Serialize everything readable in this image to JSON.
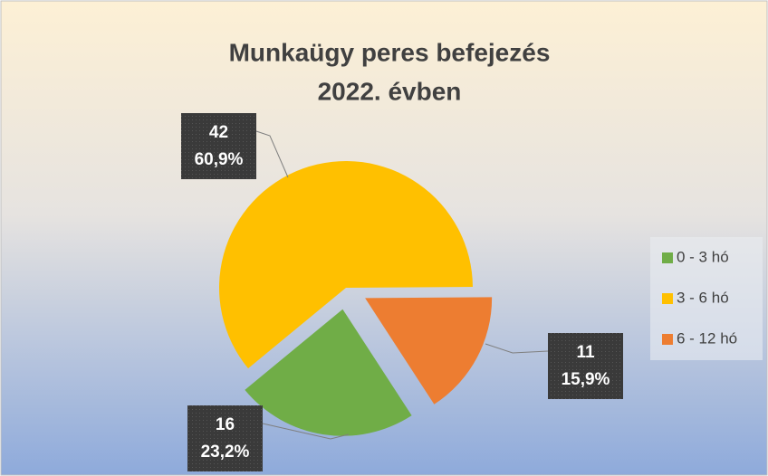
{
  "chart_data": {
    "type": "pie",
    "title": [
      "Munkaügy peres befejezés",
      "2022. évben"
    ],
    "categories": [
      "0 - 3 hó",
      "3 - 6 hó",
      "6 - 12 hó"
    ],
    "values": [
      16,
      42,
      11
    ],
    "percent_labels": [
      "23,2%",
      "60,9%",
      "15,9%"
    ],
    "colors": [
      "#70ad47",
      "#ffc000",
      "#ed7d31"
    ],
    "legend": "right"
  }
}
